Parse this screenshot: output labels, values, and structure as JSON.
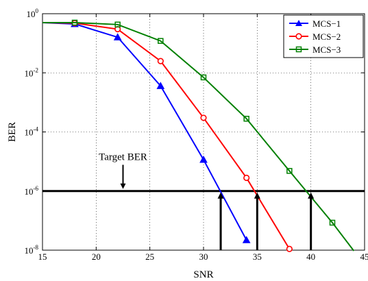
{
  "chart_data": {
    "type": "line",
    "title": "",
    "xlabel": "SNR",
    "ylabel": "BER",
    "xlim": [
      15,
      45
    ],
    "ylim_log10": [
      -8,
      0
    ],
    "y_scale": "log",
    "grid": true,
    "grid_style": "dotted",
    "legend_position": "top-right",
    "x_ticks": [
      15,
      20,
      25,
      30,
      35,
      40,
      45
    ],
    "x_tick_labels": [
      "15",
      "20",
      "25",
      "30",
      "35",
      "40",
      "45"
    ],
    "y_ticks_log10": [
      -8,
      -6,
      -4,
      -2,
      0
    ],
    "y_tick_labels": [
      {
        "base": "10",
        "exp": "-8"
      },
      {
        "base": "10",
        "exp": "-6"
      },
      {
        "base": "10",
        "exp": "-4"
      },
      {
        "base": "10",
        "exp": "-2"
      },
      {
        "base": "10",
        "exp": "0"
      }
    ],
    "series": [
      {
        "name": "MCS−1",
        "color": "#0000ff",
        "marker": "triangle",
        "x": [
          15,
          18,
          22,
          26,
          30,
          34
        ],
        "y": [
          0.5,
          0.45,
          0.16,
          0.0036,
          1.15e-05,
          2.2e-08
        ],
        "markers_x": [
          18,
          22,
          26,
          30,
          34
        ]
      },
      {
        "name": "MCS−2",
        "color": "#ff0000",
        "marker": "circle",
        "x": [
          15,
          18,
          22,
          26,
          30,
          34,
          38
        ],
        "y": [
          0.5,
          0.48,
          0.3,
          0.025,
          0.0003,
          2.8e-06,
          1.1e-08
        ],
        "markers_x": [
          18,
          22,
          26,
          30,
          34,
          38
        ]
      },
      {
        "name": "MCS−3",
        "color": "#008000",
        "marker": "square",
        "x": [
          15,
          18,
          22,
          26,
          30,
          34,
          38,
          42,
          44
        ],
        "y": [
          0.5,
          0.5,
          0.43,
          0.12,
          0.007,
          0.00028,
          4.8e-06,
          8.5e-08,
          9.5e-09
        ],
        "markers_x": [
          18,
          22,
          26,
          30,
          34,
          38,
          42
        ]
      }
    ],
    "target_line": {
      "y": 1e-06,
      "color": "#000000"
    },
    "annotation": {
      "text": "Target BER",
      "arrow_x": 22.5,
      "label_x": 22.5,
      "label_y_log10": -4.95
    },
    "up_arrows": [
      31.6,
      35,
      40
    ]
  }
}
